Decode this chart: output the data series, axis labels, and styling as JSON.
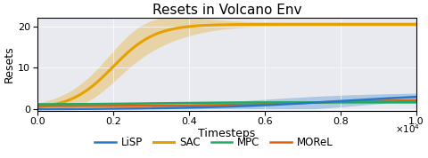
{
  "title": "Resets in Volcano Env",
  "xlabel": "Timesteps",
  "ylabel": "Resets",
  "xlim": [
    0,
    10000
  ],
  "ylim": [
    -0.3,
    22
  ],
  "xticks": [
    0,
    2000,
    4000,
    6000,
    8000,
    10000
  ],
  "yticks": [
    0,
    10,
    20
  ],
  "background_color": "#e8eaf0",
  "line_colors": {
    "LiSP": "#2878c8",
    "SAC": "#e8a000",
    "MPC": "#22aa66",
    "MOReL": "#e06010"
  }
}
